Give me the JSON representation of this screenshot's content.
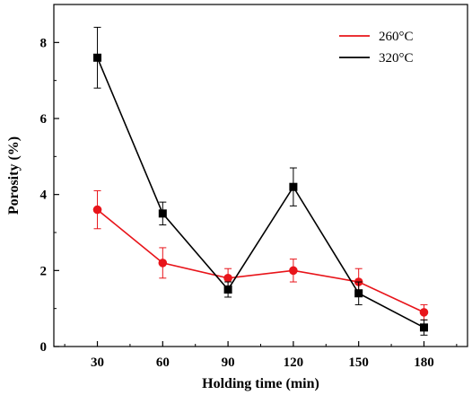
{
  "chart_data": {
    "type": "line",
    "title": "",
    "xlabel": "Holding time (min)",
    "ylabel": "Porosity (%)",
    "x": [
      30,
      60,
      90,
      120,
      150,
      180
    ],
    "x_ticks": [
      "30",
      "60",
      "90",
      "120",
      "150",
      "180"
    ],
    "xlim": [
      10,
      200
    ],
    "ylim": [
      0,
      9
    ],
    "y_ticks": [
      "0",
      "2",
      "4",
      "6",
      "8"
    ],
    "grid": false,
    "legend_position": "top-right",
    "series": [
      {
        "name": "260°C",
        "color": "#e8141a",
        "marker": "circle",
        "values": [
          3.6,
          2.2,
          1.8,
          2.0,
          1.7,
          0.9
        ],
        "errors": [
          0.5,
          0.4,
          0.25,
          0.3,
          0.35,
          0.2
        ]
      },
      {
        "name": "320°C",
        "color": "#000000",
        "marker": "square",
        "values": [
          7.6,
          3.5,
          1.5,
          4.2,
          1.4,
          0.5
        ],
        "errors": [
          0.8,
          0.3,
          0.2,
          0.5,
          0.3,
          0.2
        ]
      }
    ]
  }
}
